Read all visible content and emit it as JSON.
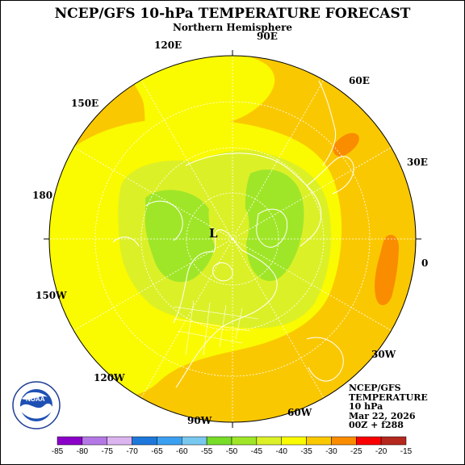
{
  "title": "NCEP/GFS 10-hPa TEMPERATURE FORECAST",
  "subtitle": "Northern Hemisphere",
  "longitude_labels": [
    "90E",
    "60E",
    "30E",
    "0",
    "30W",
    "60W",
    "90W",
    "120W",
    "150W",
    "180",
    "150E",
    "120E"
  ],
  "low_label": "L",
  "info": {
    "line1": "NCEP/GFS",
    "line2": "TEMPERATURE",
    "line3": "10 hPa",
    "line4": "Mar 22, 2026",
    "line5": "00Z + f288"
  },
  "logo": {
    "name": "NOAA",
    "ring_text": "NATIONAL OCEANIC AND ATMOSPHERIC ADMINISTRATION · U.S. DEPARTMENT OF COMMERCE"
  },
  "colorbar": {
    "labels": [
      "-85",
      "-80",
      "-75",
      "-70",
      "-65",
      "-60",
      "-55",
      "-50",
      "-45",
      "-40",
      "-35",
      "-30",
      "-25",
      "-20",
      "-15"
    ],
    "colors": [
      "#8a00c8",
      "#b478e6",
      "#dcb4f0",
      "#1e78dc",
      "#3ca0f0",
      "#78c8f0",
      "#78dc28",
      "#a0e628",
      "#dcf028",
      "#fafa00",
      "#fac800",
      "#fa8c00",
      "#fa0000",
      "#b4281e"
    ]
  },
  "colors": {
    "ocean": "#fac800",
    "band_minus40": "#fafa00",
    "band_minus45": "#dcf028",
    "band_minus50": "#a0e628",
    "warm_patch": "#fa8c00",
    "coast": "#ffffff"
  }
}
